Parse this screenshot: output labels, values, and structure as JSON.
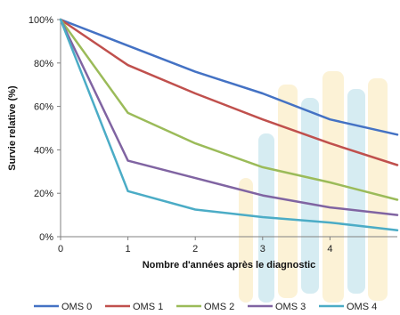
{
  "chart_data": {
    "type": "line",
    "xlabel": "Nombre d'années après le diagnostic",
    "ylabel": "Survie relative (%)",
    "x": [
      0,
      1,
      2,
      3,
      4,
      5
    ],
    "xlim": [
      0,
      5
    ],
    "xticks": [
      "0",
      "1",
      "2",
      "3",
      "4"
    ],
    "ylim": [
      0,
      100
    ],
    "yticks": [
      "0%",
      "20%",
      "40%",
      "60%",
      "80%",
      "100%"
    ],
    "grid": false,
    "legend_position": "bottom",
    "series": [
      {
        "name": "OMS 0",
        "color": "#4472c4",
        "values": [
          100,
          88,
          76,
          66,
          54,
          47
        ]
      },
      {
        "name": "OMS 1",
        "color": "#c0504d",
        "values": [
          100,
          79,
          66,
          54,
          43,
          33
        ]
      },
      {
        "name": "OMS 2",
        "color": "#9bbb59",
        "values": [
          100,
          57,
          43,
          32,
          25,
          17
        ]
      },
      {
        "name": "OMS 3",
        "color": "#8064a2",
        "values": [
          100,
          35,
          27,
          19,
          13.5,
          10
        ]
      },
      {
        "name": "OMS 4",
        "color": "#4bacc6",
        "values": [
          100,
          21,
          12.5,
          9,
          6.5,
          3
        ]
      }
    ]
  }
}
